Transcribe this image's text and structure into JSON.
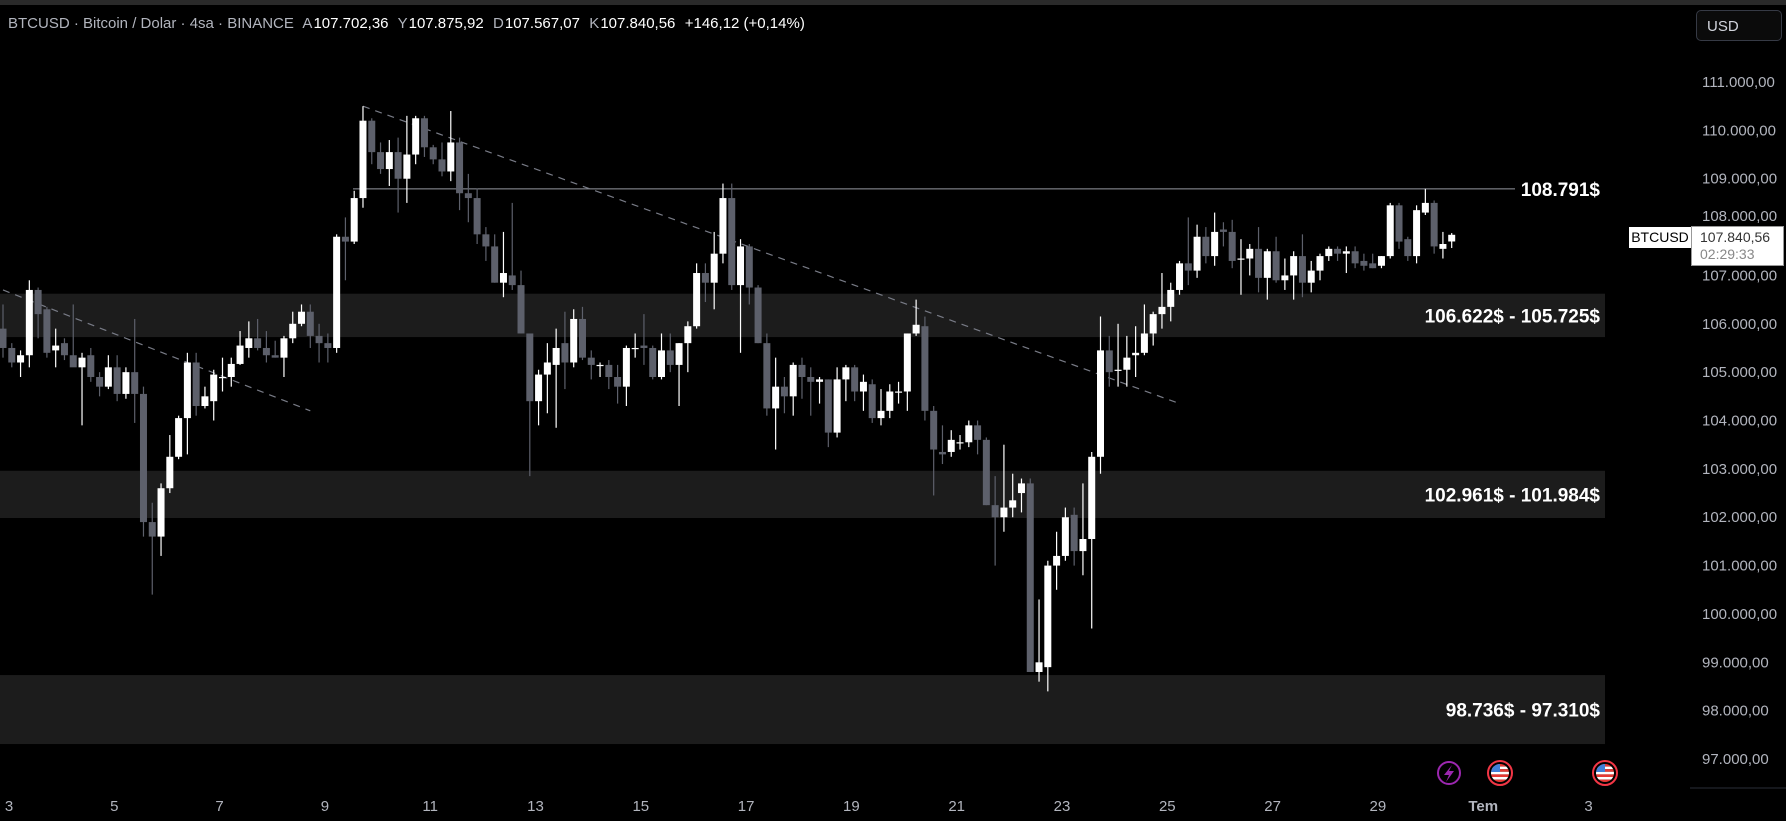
{
  "header": {
    "symbol_line": "BTCUSD · Bitcoin / Dolar · 4sa · BINANCE",
    "open_prefix": "A",
    "open": "107.702,36",
    "high_prefix": "Y",
    "high": "107.875,92",
    "low_prefix": "D",
    "low": "107.567,07",
    "close_prefix": "K",
    "close": "107.840,56",
    "change": "+146,12 (+0,14%)"
  },
  "currency_button": "USD",
  "current_price": {
    "symbol": "BTCUSD",
    "price": "107.840,56",
    "countdown": "02:29:33"
  },
  "bottom_icons": [
    "lightning-icon",
    "us-flag-icon",
    "us-flag-icon"
  ],
  "colors": {
    "background": "#000000",
    "up": "#ffffff",
    "down": "#5d606b",
    "zone": "#1c1c1c",
    "hline": "#9598a1",
    "trend": "#787b86",
    "lightning": "#9c27b0",
    "flag_ring": "#f23645"
  },
  "chart_data": {
    "type": "candlestick",
    "timeframe": "4h",
    "ylim": [
      97000,
      111000
    ],
    "y_ticks": [
      "111.000,00",
      "110.000,00",
      "109.000,00",
      "108.000,00",
      "107.000,00",
      "106.000,00",
      "105.000,00",
      "104.000,00",
      "103.000,00",
      "102.000,00",
      "101.000,00",
      "100.000,00",
      "99.000,00",
      "98.000,00",
      "97.000,00"
    ],
    "x_ticks": [
      "3",
      "5",
      "7",
      "9",
      "11",
      "13",
      "15",
      "17",
      "19",
      "21",
      "23",
      "25",
      "27",
      "29",
      "Tem",
      "3"
    ],
    "candles_ohlc": [
      [
        105900,
        106400,
        105300,
        105500
      ],
      [
        105500,
        105600,
        105100,
        105200
      ],
      [
        105200,
        105450,
        104900,
        105350
      ],
      [
        105350,
        106900,
        105100,
        106700
      ],
      [
        106700,
        106750,
        105700,
        106200
      ],
      [
        106300,
        106350,
        105300,
        105400
      ],
      [
        105450,
        105900,
        105100,
        105550
      ],
      [
        105600,
        105700,
        105250,
        105350
      ],
      [
        105350,
        106400,
        105250,
        105100
      ],
      [
        105100,
        105400,
        103900,
        105300
      ],
      [
        105350,
        105500,
        104800,
        104900
      ],
      [
        104900,
        105000,
        104500,
        104700
      ],
      [
        104700,
        105350,
        104650,
        105100
      ],
      [
        105100,
        105350,
        104400,
        104550
      ],
      [
        104550,
        105100,
        104450,
        105000
      ],
      [
        105000,
        106100,
        103950,
        104550
      ],
      [
        104550,
        104700,
        101600,
        101900
      ],
      [
        101900,
        102300,
        100400,
        101600
      ],
      [
        101600,
        102700,
        101200,
        102600
      ],
      [
        102600,
        103700,
        102500,
        103250
      ],
      [
        103250,
        104100,
        103200,
        104050
      ],
      [
        104050,
        105400,
        103300,
        105200
      ],
      [
        105200,
        105400,
        104100,
        104300
      ],
      [
        104300,
        104700,
        104250,
        104500
      ],
      [
        104400,
        105050,
        104000,
        104950
      ],
      [
        104900,
        105300,
        104600,
        104900
      ],
      [
        104900,
        105300,
        104700,
        105170
      ],
      [
        105170,
        105850,
        105150,
        105550
      ],
      [
        105500,
        106050,
        105300,
        105700
      ],
      [
        105700,
        106100,
        105450,
        105500
      ],
      [
        105500,
        105850,
        105200,
        105350
      ],
      [
        105350,
        105650,
        105300,
        105300
      ],
      [
        105300,
        105750,
        104900,
        105700
      ],
      [
        105700,
        106250,
        105600,
        106000
      ],
      [
        106000,
        106400,
        105950,
        106250
      ],
      [
        106250,
        106400,
        105500,
        105750
      ],
      [
        105750,
        106000,
        105200,
        105600
      ],
      [
        105600,
        105800,
        105200,
        105500
      ],
      [
        105500,
        107850,
        105400,
        107800
      ],
      [
        107800,
        108200,
        106900,
        107700
      ],
      [
        107700,
        108750,
        107650,
        108600
      ],
      [
        108600,
        110500,
        108400,
        110200
      ],
      [
        110200,
        110250,
        109300,
        109550
      ],
      [
        109550,
        109750,
        109100,
        109200
      ],
      [
        109200,
        109800,
        108850,
        109550
      ],
      [
        109550,
        109850,
        108300,
        109000
      ],
      [
        109000,
        110300,
        108500,
        109500
      ],
      [
        109500,
        110300,
        109300,
        110250
      ],
      [
        110250,
        110300,
        109450,
        109650
      ],
      [
        109650,
        109700,
        109300,
        109400
      ],
      [
        109400,
        109750,
        109050,
        109150
      ],
      [
        109150,
        110400,
        108950,
        109750
      ],
      [
        109750,
        109850,
        108350,
        108700
      ],
      [
        108700,
        109100,
        108100,
        108600
      ],
      [
        108600,
        108800,
        107650,
        107850
      ],
      [
        107850,
        108000,
        107300,
        107600
      ],
      [
        107600,
        107850,
        106850,
        106850
      ],
      [
        106850,
        107900,
        106550,
        107050
      ],
      [
        107000,
        108500,
        106700,
        106800
      ],
      [
        106800,
        107100,
        105800,
        105800
      ],
      [
        105800,
        105800,
        102850,
        104400
      ],
      [
        104400,
        105050,
        103900,
        104950
      ],
      [
        104950,
        105600,
        104150,
        105200
      ],
      [
        105150,
        105900,
        103850,
        105500
      ],
      [
        105600,
        106250,
        104650,
        105200
      ],
      [
        105200,
        106300,
        105100,
        106100
      ],
      [
        106100,
        106350,
        105250,
        105300
      ],
      [
        105300,
        105450,
        104850,
        105150
      ],
      [
        105150,
        105200,
        104900,
        105150
      ],
      [
        105150,
        105250,
        104650,
        104900
      ],
      [
        104900,
        105150,
        104350,
        104700
      ],
      [
        104700,
        105550,
        104300,
        105500
      ],
      [
        105500,
        105800,
        105300,
        105500
      ],
      [
        105550,
        106200,
        105150,
        105500
      ],
      [
        105500,
        105550,
        104850,
        104900
      ],
      [
        104900,
        105800,
        104850,
        105450
      ],
      [
        105450,
        105800,
        105000,
        105150
      ],
      [
        105150,
        105600,
        104300,
        105600
      ],
      [
        105600,
        106050,
        105000,
        105950
      ],
      [
        105950,
        107250,
        105900,
        107050
      ],
      [
        107050,
        107250,
        106450,
        106850
      ],
      [
        106850,
        107900,
        106300,
        107450
      ],
      [
        107450,
        108900,
        107250,
        108600
      ],
      [
        108600,
        108900,
        106700,
        106800
      ],
      [
        106800,
        107750,
        105400,
        107600
      ],
      [
        107600,
        107650,
        106400,
        106750
      ],
      [
        106750,
        106800,
        105600,
        105600
      ],
      [
        105600,
        105800,
        104100,
        104250
      ],
      [
        104250,
        105300,
        103400,
        104700
      ],
      [
        104700,
        104900,
        104150,
        104500
      ],
      [
        104500,
        105200,
        104100,
        105150
      ],
      [
        105150,
        105300,
        104450,
        104900
      ],
      [
        104900,
        105100,
        104100,
        104800
      ],
      [
        104800,
        104900,
        104350,
        104850
      ],
      [
        104850,
        104850,
        103450,
        103750
      ],
      [
        103750,
        105100,
        103650,
        104850
      ],
      [
        104850,
        105150,
        104400,
        105100
      ],
      [
        105100,
        105150,
        104400,
        104600
      ],
      [
        104600,
        104950,
        104200,
        104800
      ],
      [
        104750,
        104850,
        103950,
        104050
      ],
      [
        104050,
        104650,
        103900,
        104200
      ],
      [
        104200,
        104750,
        104050,
        104600
      ],
      [
        104600,
        104800,
        104350,
        104600
      ],
      [
        104600,
        105800,
        104200,
        105800
      ],
      [
        105800,
        106500,
        105750,
        105980
      ],
      [
        105950,
        106150,
        104000,
        104200
      ],
      [
        104200,
        104300,
        102450,
        103400
      ],
      [
        103350,
        103900,
        103100,
        103300
      ],
      [
        103350,
        103800,
        103250,
        103600
      ],
      [
        103550,
        103700,
        103400,
        103550
      ],
      [
        103550,
        104000,
        103450,
        103900
      ],
      [
        103900,
        104000,
        103300,
        103600
      ],
      [
        103600,
        103650,
        102250,
        102250
      ],
      [
        102250,
        102850,
        101000,
        102000
      ],
      [
        102000,
        103500,
        101700,
        102200
      ],
      [
        102200,
        102900,
        102000,
        102350
      ],
      [
        102500,
        102800,
        102100,
        102700
      ],
      [
        102700,
        102800,
        98800,
        98800
      ],
      [
        98800,
        100300,
        98600,
        99000
      ],
      [
        98900,
        101100,
        98400,
        101000
      ],
      [
        101000,
        101700,
        100500,
        101200
      ],
      [
        101200,
        102200,
        101100,
        102000
      ],
      [
        102050,
        102200,
        101000,
        101300
      ],
      [
        101300,
        102700,
        100800,
        101550
      ],
      [
        101550,
        103350,
        99700,
        103250
      ],
      [
        103250,
        106150,
        102900,
        105450
      ],
      [
        105450,
        105750,
        104700,
        105000
      ],
      [
        105050,
        106000,
        104700,
        105050
      ],
      [
        105050,
        105750,
        104700,
        105300
      ],
      [
        105350,
        105950,
        104900,
        105400
      ],
      [
        105400,
        106400,
        105350,
        105800
      ],
      [
        105800,
        106250,
        105550,
        106200
      ],
      [
        106200,
        107050,
        105900,
        106350
      ],
      [
        106350,
        106850,
        106050,
        106700
      ],
      [
        106700,
        107300,
        106600,
        107250
      ],
      [
        107250,
        108200,
        106800,
        107100
      ],
      [
        107100,
        108050,
        106950,
        107800
      ],
      [
        107800,
        108000,
        107250,
        107400
      ],
      [
        107400,
        108300,
        107200,
        107900
      ],
      [
        107950,
        108100,
        107600,
        107900
      ],
      [
        107900,
        108150,
        107150,
        107300
      ],
      [
        107350,
        107750,
        106600,
        107350
      ],
      [
        107350,
        107650,
        107000,
        107550
      ],
      [
        107550,
        108000,
        106650,
        106950
      ],
      [
        106950,
        107550,
        106500,
        107500
      ],
      [
        107500,
        107800,
        106850,
        106900
      ],
      [
        106900,
        107350,
        106700,
        107000
      ],
      [
        107000,
        107500,
        106500,
        107400
      ],
      [
        107400,
        107850,
        106550,
        106850
      ],
      [
        106850,
        107300,
        106650,
        107100
      ],
      [
        107100,
        107450,
        106900,
        107400
      ],
      [
        107400,
        107600,
        107300,
        107550
      ],
      [
        107550,
        107600,
        107300,
        107450
      ],
      [
        107450,
        107600,
        107050,
        107500
      ],
      [
        107500,
        107600,
        107150,
        107250
      ],
      [
        107300,
        107450,
        107100,
        107200
      ],
      [
        107250,
        107450,
        107150,
        107150
      ],
      [
        107200,
        107400,
        107150,
        107400
      ],
      [
        107400,
        108500,
        107350,
        108450
      ],
      [
        108450,
        108500,
        107550,
        107700
      ],
      [
        107750,
        107800,
        107300,
        107400
      ],
      [
        107400,
        108450,
        107250,
        108350
      ],
      [
        108300,
        108791,
        108250,
        108500
      ],
      [
        108500,
        108550,
        107450,
        107600
      ],
      [
        107550,
        107900,
        107350,
        107650
      ],
      [
        107702.36,
        107875.92,
        107567.07,
        107840.56
      ]
    ],
    "horizontal_line": {
      "price": 108791,
      "label": "108.791$"
    },
    "zones": [
      {
        "top": 106622,
        "bottom": 105725,
        "label": "106.622$ - 105.725$"
      },
      {
        "top": 102961,
        "bottom": 101984,
        "label": "102.961$ - 101.984$"
      },
      {
        "top": 98736,
        "bottom": 97310,
        "label": "98.736$ - 97.310$"
      }
    ],
    "trendlines": [
      {
        "from": [
          0,
          106700
        ],
        "to": [
          35,
          104200
        ],
        "style": "dashed"
      },
      {
        "from": [
          41,
          110500
        ],
        "to": [
          134,
          104350
        ],
        "style": "dashed"
      }
    ]
  }
}
